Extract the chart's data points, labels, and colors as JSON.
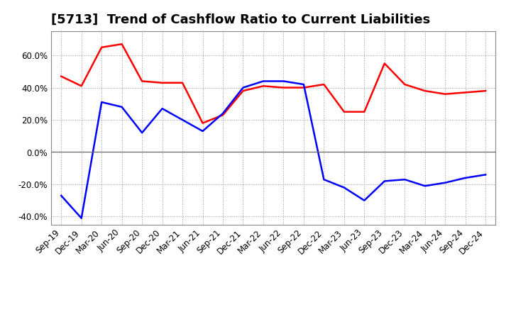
{
  "title": "[5713]  Trend of Cashflow Ratio to Current Liabilities",
  "x_labels": [
    "Sep-19",
    "Dec-19",
    "Mar-20",
    "Jun-20",
    "Sep-20",
    "Dec-20",
    "Mar-21",
    "Jun-21",
    "Sep-21",
    "Dec-21",
    "Mar-22",
    "Jun-22",
    "Sep-22",
    "Dec-22",
    "Mar-23",
    "Jun-23",
    "Sep-23",
    "Dec-23",
    "Mar-24",
    "Jun-24",
    "Sep-24",
    "Dec-24"
  ],
  "operating_cf": [
    0.47,
    0.41,
    0.65,
    0.67,
    0.44,
    0.43,
    0.43,
    0.18,
    0.23,
    0.38,
    0.41,
    0.4,
    0.4,
    0.42,
    0.25,
    0.25,
    0.55,
    0.42,
    0.38,
    0.36,
    0.37,
    0.38
  ],
  "free_cf": [
    -0.27,
    -0.41,
    0.31,
    0.28,
    0.12,
    0.27,
    0.2,
    0.13,
    0.24,
    0.4,
    0.44,
    0.44,
    0.42,
    -0.17,
    -0.22,
    -0.3,
    -0.18,
    -0.17,
    -0.21,
    -0.19,
    -0.16,
    -0.14
  ],
  "operating_color": "#ff0000",
  "free_color": "#0000ff",
  "ylim": [
    -0.45,
    0.75
  ],
  "yticks": [
    -0.4,
    -0.2,
    0.0,
    0.2,
    0.4,
    0.6
  ],
  "background_color": "#ffffff",
  "grid_color": "#999999",
  "line_width": 1.8,
  "title_fontsize": 13,
  "tick_fontsize": 8.5,
  "legend_fontsize": 9.5
}
